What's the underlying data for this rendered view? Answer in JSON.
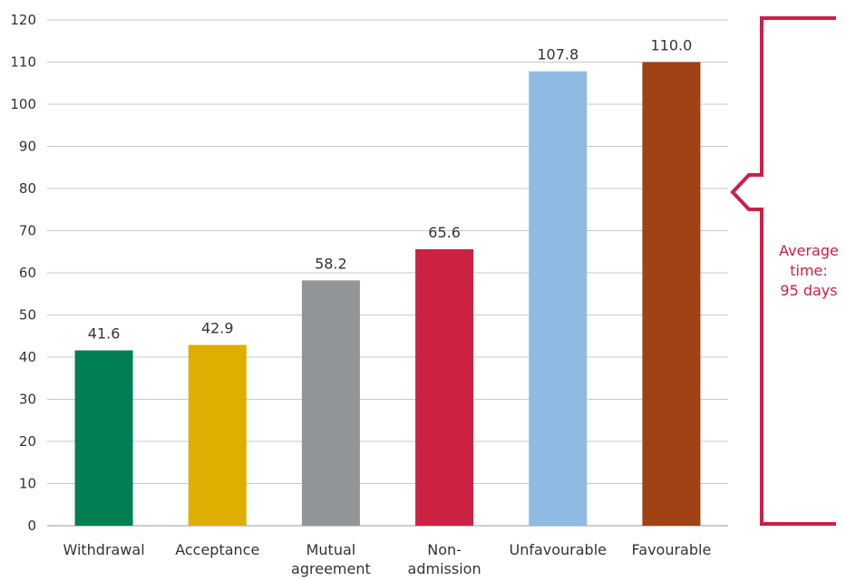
{
  "chart_data": {
    "type": "bar",
    "categories": [
      [
        "Withdrawal"
      ],
      [
        "Acceptance"
      ],
      [
        "Mutual",
        "agreement"
      ],
      [
        "Non-",
        "admission"
      ],
      [
        "Unfavourable"
      ],
      [
        "Favourable"
      ]
    ],
    "values": [
      41.6,
      42.9,
      58.2,
      65.6,
      107.8,
      110.0
    ],
    "value_labels": [
      "41.6",
      "42.9",
      "58.2",
      "65.6",
      "107.8",
      "110.0"
    ],
    "colors": [
      "#008052",
      "#dfae00",
      "#929597",
      "#cc2244",
      "#8fbbe2",
      "#a04213"
    ],
    "ylim": [
      0,
      120
    ],
    "yticks": [
      0,
      10,
      20,
      30,
      40,
      50,
      60,
      70,
      80,
      90,
      100,
      110,
      120
    ],
    "grid": true,
    "annotation": {
      "lines": [
        "Average",
        "time:",
        "95 days"
      ],
      "value": 95,
      "color": "#cc1f45"
    }
  }
}
